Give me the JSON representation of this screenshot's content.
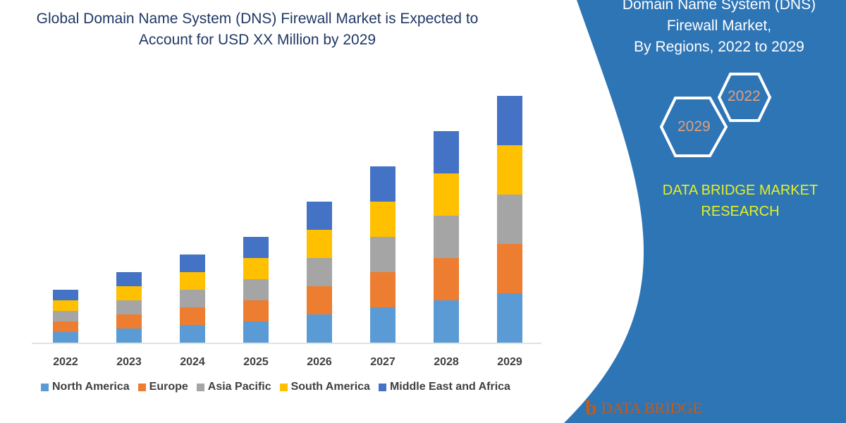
{
  "title": [
    "Global Domain Name System (DNS) Firewall Market is Expected to",
    "Account for USD XX Million by 2029"
  ],
  "panel": {
    "title_lines": [
      "Domain Name System (DNS)",
      "Firewall Market,",
      "By Regions, 2022 to 2029"
    ],
    "hex_labels": [
      "2022",
      "2029"
    ],
    "brand_lines": [
      "DATA BRIDGE MARKET",
      "RESEARCH"
    ],
    "logo_text": "DATA BRIDGE",
    "color": "#2e74b5"
  },
  "chart_data": {
    "type": "bar",
    "stacked": true,
    "categories": [
      "2022",
      "2023",
      "2024",
      "2025",
      "2026",
      "2027",
      "2028",
      "2029"
    ],
    "series": [
      {
        "name": "North America",
        "color": "#5b9bd5",
        "values": [
          3,
          4,
          5,
          6,
          8,
          10,
          12,
          14
        ]
      },
      {
        "name": "Europe",
        "color": "#ed7d31",
        "values": [
          3,
          4,
          5,
          6,
          8,
          10,
          12,
          14
        ]
      },
      {
        "name": "Asia Pacific",
        "color": "#a5a5a5",
        "values": [
          3,
          4,
          5,
          6,
          8,
          10,
          12,
          14
        ]
      },
      {
        "name": "South America",
        "color": "#ffc000",
        "values": [
          3,
          4,
          5,
          6,
          8,
          10,
          12,
          14
        ]
      },
      {
        "name": "Middle East and Africa",
        "color": "#4472c4",
        "values": [
          3,
          4,
          5,
          6,
          8,
          10,
          12,
          14
        ]
      }
    ],
    "ylim": [
      0,
      70
    ],
    "grid": false,
    "legend": "bottom"
  }
}
